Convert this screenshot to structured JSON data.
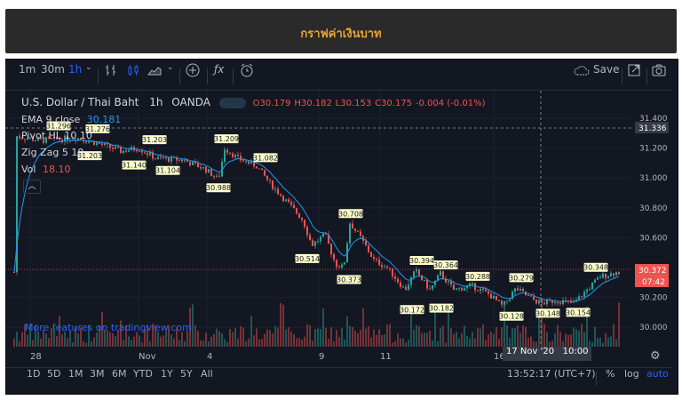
{
  "banner": {
    "title": "กราฟค่าเงินบาท"
  },
  "toolbar": {
    "intervals": [
      "1m",
      "30m",
      "1h"
    ],
    "save_label": "Save"
  },
  "legend": {
    "symbol": "U.S. Dollar / Thai Baht",
    "interval": "1h",
    "broker": "OANDA",
    "open": "O30.179",
    "high": "H30.182",
    "low": "L30.153",
    "close": "C30.175",
    "change": "-0.004 (-0.01%)",
    "ema_label": "EMA 9 close",
    "ema_value": "30.181",
    "pivot_label": "Pivot HL 10 10",
    "zigzag_label": "Zig Zag 5 10",
    "vol_label": "Vol",
    "vol_value": "18.10"
  },
  "price_axis": {
    "ticks": [
      "31.400",
      "31.200",
      "31.000",
      "30.800",
      "30.600",
      "30.200",
      "30.000"
    ],
    "crosshair_price": "31.336",
    "last_price": "30.372",
    "countdown": "07:42"
  },
  "time_axis": {
    "labels": [
      "28",
      "Nov",
      "4",
      "9",
      "11",
      "16"
    ],
    "crosshair_time": "17 Nov '20   10:00"
  },
  "pivot_labels": [
    "31.296",
    "31.276",
    "31.203",
    "31.203",
    "31.140",
    "31.104",
    "31.209",
    "30.988",
    "31.082",
    "30.708",
    "30.514",
    "30.373",
    "30.394",
    "30.364",
    "30.172",
    "30.182",
    "30.288",
    "30.279",
    "30.128",
    "30.148",
    "30.154",
    "30.348"
  ],
  "watermark_link": "More features on tradingview.com",
  "bottom_bar": {
    "ranges": [
      "1D",
      "5D",
      "1M",
      "3M",
      "6M",
      "YTD",
      "1Y",
      "5Y",
      "All"
    ],
    "clock": "13:52:17 (UTC+7)",
    "percent": "%",
    "log": "log",
    "auto": "auto"
  },
  "colors": {
    "background": "#131722",
    "up": "#26a69a",
    "down": "#ef5350",
    "ema": "#2196f3",
    "accent": "#2962ff",
    "banner_text": "#e8a533"
  }
}
